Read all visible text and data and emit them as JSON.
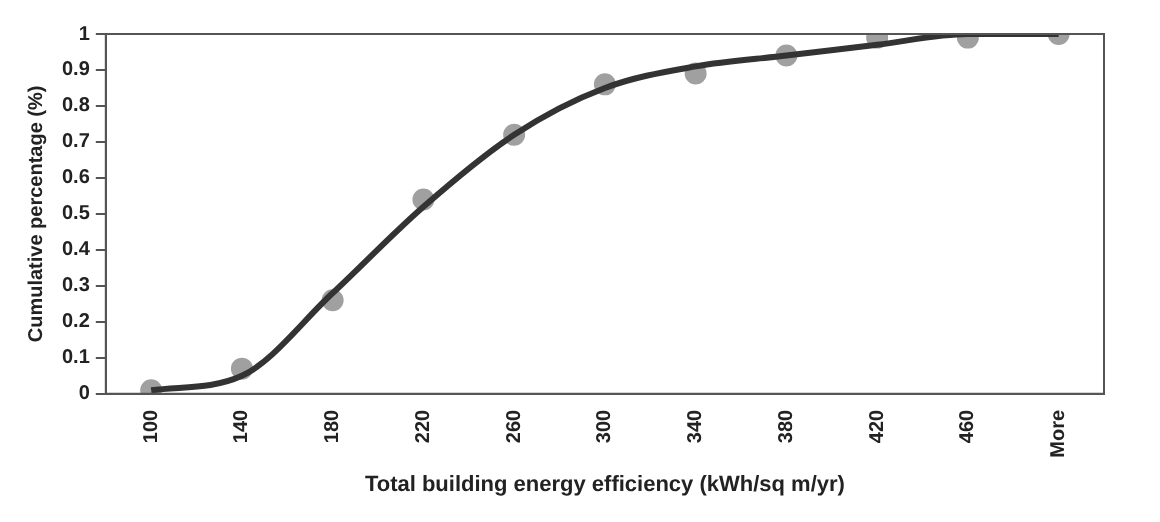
{
  "chart_data": {
    "type": "line",
    "xlabel": "Total building energy efficiency (kWh/sq m/yr)",
    "ylabel": "Cumulative percentage (%)",
    "categories": [
      "100",
      "140",
      "180",
      "220",
      "260",
      "300",
      "340",
      "380",
      "420",
      "460",
      "More"
    ],
    "series": [
      {
        "type": "scatter",
        "color": "#a0a0a0",
        "marker": "circle",
        "x": [
          "100",
          "140",
          "180",
          "220",
          "260",
          "300",
          "340",
          "380",
          "420",
          "460",
          "More"
        ],
        "values": [
          0.01,
          0.07,
          0.26,
          0.54,
          0.72,
          0.86,
          0.89,
          0.94,
          0.99,
          0.99,
          1.0
        ]
      },
      {
        "color": "#333333",
        "line_style": "solid",
        "values": [
          0.01,
          0.05,
          0.28,
          0.52,
          0.72,
          0.85,
          0.91,
          0.94,
          0.97,
          1.0,
          1.0
        ]
      }
    ],
    "ylim": [
      0,
      1
    ],
    "yticks": [
      0,
      0.1,
      0.2,
      0.3,
      0.4,
      0.5,
      0.6,
      0.7,
      0.8,
      0.9,
      1
    ],
    "grid": false,
    "legend": false
  }
}
